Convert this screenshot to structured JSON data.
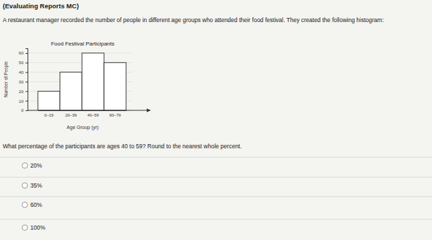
{
  "header": "(Evaluating Reports MC)",
  "intro": "A restaurant manager recorded the number of people in different age groups who attended their food festival. They created the following histogram:",
  "chart_data": {
    "type": "bar",
    "title": "Food Festival Participants",
    "x_label": "Age Group (yr)",
    "y_label": "Number of People",
    "categories": [
      "0–19",
      "20–39",
      "40–59",
      "60–79"
    ],
    "values": [
      20,
      40,
      60,
      50
    ],
    "color": "#ffffff",
    "ylim": [
      0,
      65
    ],
    "yticks": [
      0,
      10,
      20,
      30,
      40,
      50,
      60
    ],
    "grid": true
  },
  "question": "What percentage of the participants are ages 40 to 59? Round to the nearest whole percent.",
  "options": [
    "20%",
    "35%",
    "60%",
    "100%"
  ]
}
